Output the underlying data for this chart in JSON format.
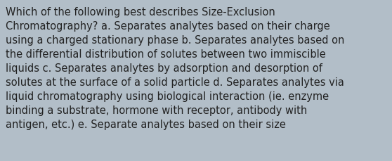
{
  "background_color": "#b2bec8",
  "text_lines": [
    "Which of the following best describes Size-Exclusion",
    "Chromatography? a. Separates analytes based on their charge",
    "using a charged stationary phase b. Separates analytes based on",
    "the differential distribution of solutes between two immiscible",
    "liquids c. Separates analytes by adsorption and desorption of",
    "solutes at the surface of a solid particle d. Separates analytes via",
    "liquid chromatography using biological interaction (ie. enzyme",
    "binding a substrate, hormone with receptor, antibody with",
    "antigen, etc.) e. Separate analytes based on their size"
  ],
  "text_color": "#222222",
  "font_size": 10.5,
  "figwidth": 5.58,
  "figheight": 2.3,
  "dpi": 100
}
